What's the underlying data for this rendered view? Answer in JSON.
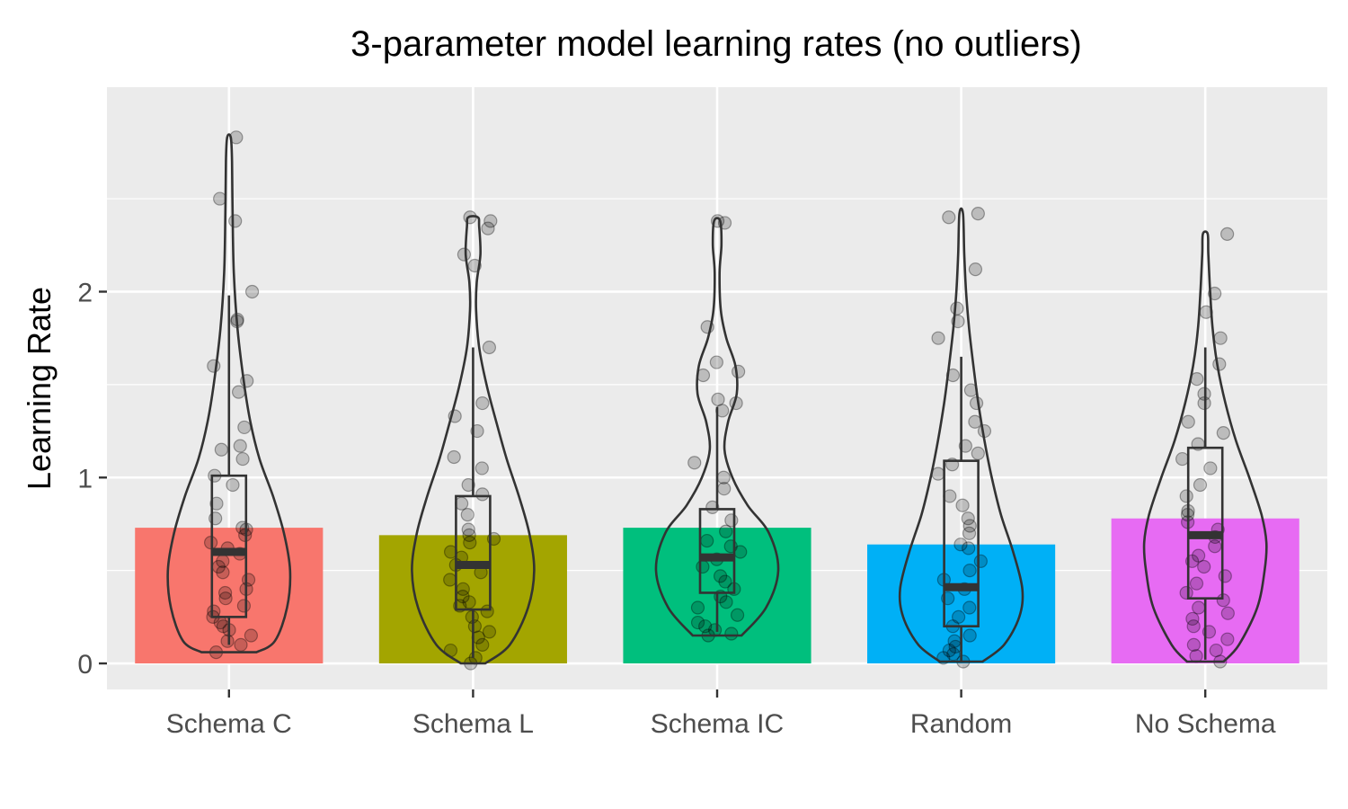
{
  "chart_data": {
    "type": "bar",
    "title": "3-parameter model learning rates (no outliers)",
    "xlabel": "",
    "ylabel": "Learning Rate",
    "ylim": [
      -0.14,
      3.1
    ],
    "yticks": [
      0,
      1,
      2
    ],
    "grid": true,
    "legend": "none",
    "categories": [
      "Schema C",
      "Schema L",
      "Schema IC",
      "Random",
      "No Schema"
    ],
    "colors": [
      "#F8766D",
      "#A3A500",
      "#00BF7D",
      "#00B0F6",
      "#E76BF3"
    ],
    "values": [
      0.73,
      0.69,
      0.73,
      0.64,
      0.78
    ],
    "boxplots": [
      {
        "q1": 0.25,
        "median": 0.6,
        "q3": 1.01,
        "whisker_low": 0.1,
        "whisker_high": 1.98
      },
      {
        "q1": 0.29,
        "median": 0.53,
        "q3": 0.9,
        "whisker_low": 0.03,
        "whisker_high": 1.7
      },
      {
        "q1": 0.38,
        "median": 0.57,
        "q3": 0.83,
        "whisker_low": 0.17,
        "whisker_high": 1.38
      },
      {
        "q1": 0.2,
        "median": 0.41,
        "q3": 1.09,
        "whisker_low": 0.01,
        "whisker_high": 1.65
      },
      {
        "q1": 0.35,
        "median": 0.69,
        "q3": 1.16,
        "whisker_low": 0.02,
        "whisker_high": 1.7
      }
    ],
    "violins": [
      {
        "min": 0.06,
        "max": 2.83,
        "profile": [
          [
            0.06,
            0.45
          ],
          [
            0.12,
            0.75
          ],
          [
            0.3,
            0.95
          ],
          [
            0.5,
            1.0
          ],
          [
            0.7,
            0.9
          ],
          [
            0.9,
            0.72
          ],
          [
            1.1,
            0.5
          ],
          [
            1.3,
            0.35
          ],
          [
            1.5,
            0.25
          ],
          [
            1.8,
            0.14
          ],
          [
            2.1,
            0.08
          ],
          [
            2.4,
            0.06
          ],
          [
            2.7,
            0.05
          ],
          [
            2.83,
            0.03
          ]
        ]
      },
      {
        "min": 0.0,
        "max": 2.4,
        "profile": [
          [
            0.0,
            0.2
          ],
          [
            0.1,
            0.6
          ],
          [
            0.3,
            0.9
          ],
          [
            0.5,
            1.0
          ],
          [
            0.7,
            0.92
          ],
          [
            0.9,
            0.75
          ],
          [
            1.1,
            0.55
          ],
          [
            1.3,
            0.38
          ],
          [
            1.5,
            0.22
          ],
          [
            1.7,
            0.1
          ],
          [
            1.9,
            0.05
          ],
          [
            2.05,
            0.06
          ],
          [
            2.2,
            0.12
          ],
          [
            2.35,
            0.1
          ],
          [
            2.4,
            0.08
          ]
        ]
      },
      {
        "min": 0.15,
        "max": 2.38,
        "profile": [
          [
            0.15,
            0.4
          ],
          [
            0.3,
            0.8
          ],
          [
            0.5,
            1.0
          ],
          [
            0.7,
            0.85
          ],
          [
            0.85,
            0.5
          ],
          [
            1.0,
            0.25
          ],
          [
            1.15,
            0.12
          ],
          [
            1.3,
            0.18
          ],
          [
            1.45,
            0.32
          ],
          [
            1.6,
            0.3
          ],
          [
            1.75,
            0.15
          ],
          [
            1.9,
            0.06
          ],
          [
            2.1,
            0.04
          ],
          [
            2.25,
            0.07
          ],
          [
            2.38,
            0.05
          ]
        ]
      },
      {
        "min": 0.01,
        "max": 2.42,
        "profile": [
          [
            0.01,
            0.35
          ],
          [
            0.1,
            0.7
          ],
          [
            0.25,
            0.95
          ],
          [
            0.4,
            1.0
          ],
          [
            0.6,
            0.85
          ],
          [
            0.8,
            0.65
          ],
          [
            1.0,
            0.5
          ],
          [
            1.2,
            0.38
          ],
          [
            1.4,
            0.28
          ],
          [
            1.6,
            0.2
          ],
          [
            1.8,
            0.13
          ],
          [
            2.0,
            0.08
          ],
          [
            2.2,
            0.05
          ],
          [
            2.42,
            0.03
          ]
        ]
      },
      {
        "min": 0.01,
        "max": 2.31,
        "profile": [
          [
            0.01,
            0.3
          ],
          [
            0.1,
            0.55
          ],
          [
            0.3,
            0.85
          ],
          [
            0.5,
            0.97
          ],
          [
            0.65,
            1.0
          ],
          [
            0.8,
            0.92
          ],
          [
            1.0,
            0.72
          ],
          [
            1.2,
            0.5
          ],
          [
            1.4,
            0.33
          ],
          [
            1.6,
            0.2
          ],
          [
            1.8,
            0.12
          ],
          [
            2.0,
            0.08
          ],
          [
            2.2,
            0.05
          ],
          [
            2.31,
            0.04
          ]
        ]
      }
    ],
    "points": [
      [
        2.83,
        2.5,
        2.38,
        2.0,
        1.85,
        1.84,
        1.6,
        1.52,
        1.46,
        1.27,
        1.17,
        1.15,
        1.1,
        1.01,
        0.96,
        0.86,
        0.78,
        0.73,
        0.72,
        0.69,
        0.65,
        0.62,
        0.59,
        0.55,
        0.52,
        0.49,
        0.45,
        0.4,
        0.38,
        0.35,
        0.31,
        0.28,
        0.25,
        0.22,
        0.2,
        0.18,
        0.15,
        0.12,
        0.1,
        0.06
      ],
      [
        2.4,
        2.38,
        2.34,
        2.2,
        2.14,
        1.7,
        1.4,
        1.33,
        1.25,
        1.11,
        1.05,
        0.96,
        0.91,
        0.86,
        0.8,
        0.72,
        0.69,
        0.67,
        0.65,
        0.6,
        0.57,
        0.53,
        0.49,
        0.45,
        0.4,
        0.36,
        0.33,
        0.31,
        0.28,
        0.25,
        0.2,
        0.17,
        0.14,
        0.1,
        0.07,
        0.03,
        0.0
      ],
      [
        2.38,
        2.37,
        1.81,
        1.62,
        1.57,
        1.55,
        1.42,
        1.4,
        1.36,
        1.08,
        1.0,
        0.94,
        0.84,
        0.77,
        0.71,
        0.66,
        0.63,
        0.6,
        0.56,
        0.52,
        0.47,
        0.44,
        0.4,
        0.36,
        0.33,
        0.3,
        0.26,
        0.22,
        0.2,
        0.18,
        0.16,
        0.15
      ],
      [
        2.42,
        2.4,
        2.12,
        1.91,
        1.84,
        1.75,
        1.55,
        1.47,
        1.4,
        1.3,
        1.25,
        1.17,
        1.13,
        1.07,
        1.02,
        0.9,
        0.85,
        0.78,
        0.74,
        0.7,
        0.64,
        0.62,
        0.55,
        0.5,
        0.45,
        0.4,
        0.35,
        0.3,
        0.25,
        0.2,
        0.15,
        0.12,
        0.09,
        0.07,
        0.05,
        0.03,
        0.01
      ],
      [
        2.31,
        1.99,
        1.89,
        1.75,
        1.61,
        1.53,
        1.45,
        1.4,
        1.3,
        1.24,
        1.18,
        1.1,
        1.05,
        0.96,
        0.9,
        0.82,
        0.8,
        0.76,
        0.72,
        0.68,
        0.63,
        0.58,
        0.55,
        0.52,
        0.47,
        0.43,
        0.38,
        0.34,
        0.3,
        0.27,
        0.24,
        0.2,
        0.17,
        0.13,
        0.1,
        0.07,
        0.04,
        0.01
      ]
    ]
  }
}
